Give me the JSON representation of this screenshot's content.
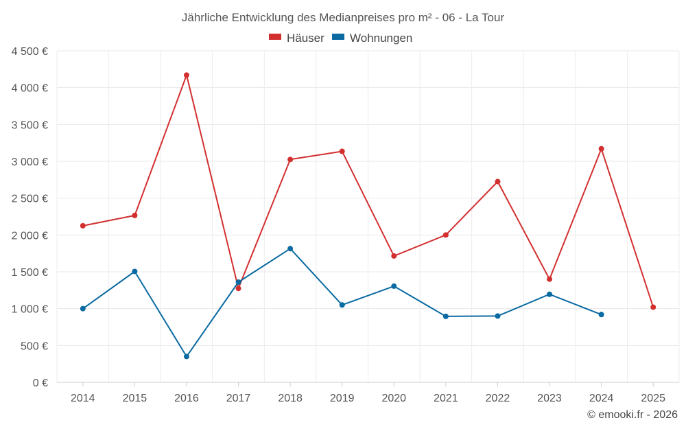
{
  "chart_data": {
    "type": "line",
    "title": "Jährliche Entwicklung des Medianpreises pro m² - 06 - La Tour",
    "categories": [
      "2014",
      "2015",
      "2016",
      "2017",
      "2018",
      "2019",
      "2020",
      "2021",
      "2022",
      "2023",
      "2024",
      "2025"
    ],
    "series": [
      {
        "name": "Häuser",
        "color": "#d32f2f",
        "values": [
          2125,
          2265,
          4170,
          1275,
          3025,
          3135,
          1715,
          2000,
          2725,
          1400,
          3170,
          1020
        ]
      },
      {
        "name": "Wohnungen",
        "color": "#0a6aa1",
        "values": [
          1000,
          1505,
          350,
          1360,
          1815,
          1050,
          1305,
          895,
          900,
          1195,
          920,
          null
        ]
      }
    ],
    "ylim": [
      0,
      4500
    ],
    "yticks": [
      0,
      500,
      1000,
      1500,
      2000,
      2500,
      3000,
      3500,
      4000,
      4500
    ],
    "ytick_labels": [
      "0 €",
      "500 €",
      "1 000 €",
      "1 500 €",
      "2 000 €",
      "2 500 €",
      "3 000 €",
      "3 500 €",
      "4 000 €",
      "4 500 €"
    ],
    "xlabel": "",
    "ylabel": "",
    "grid": true,
    "legend_position": "top-center",
    "credit": "© emooki.fr - 2026"
  }
}
